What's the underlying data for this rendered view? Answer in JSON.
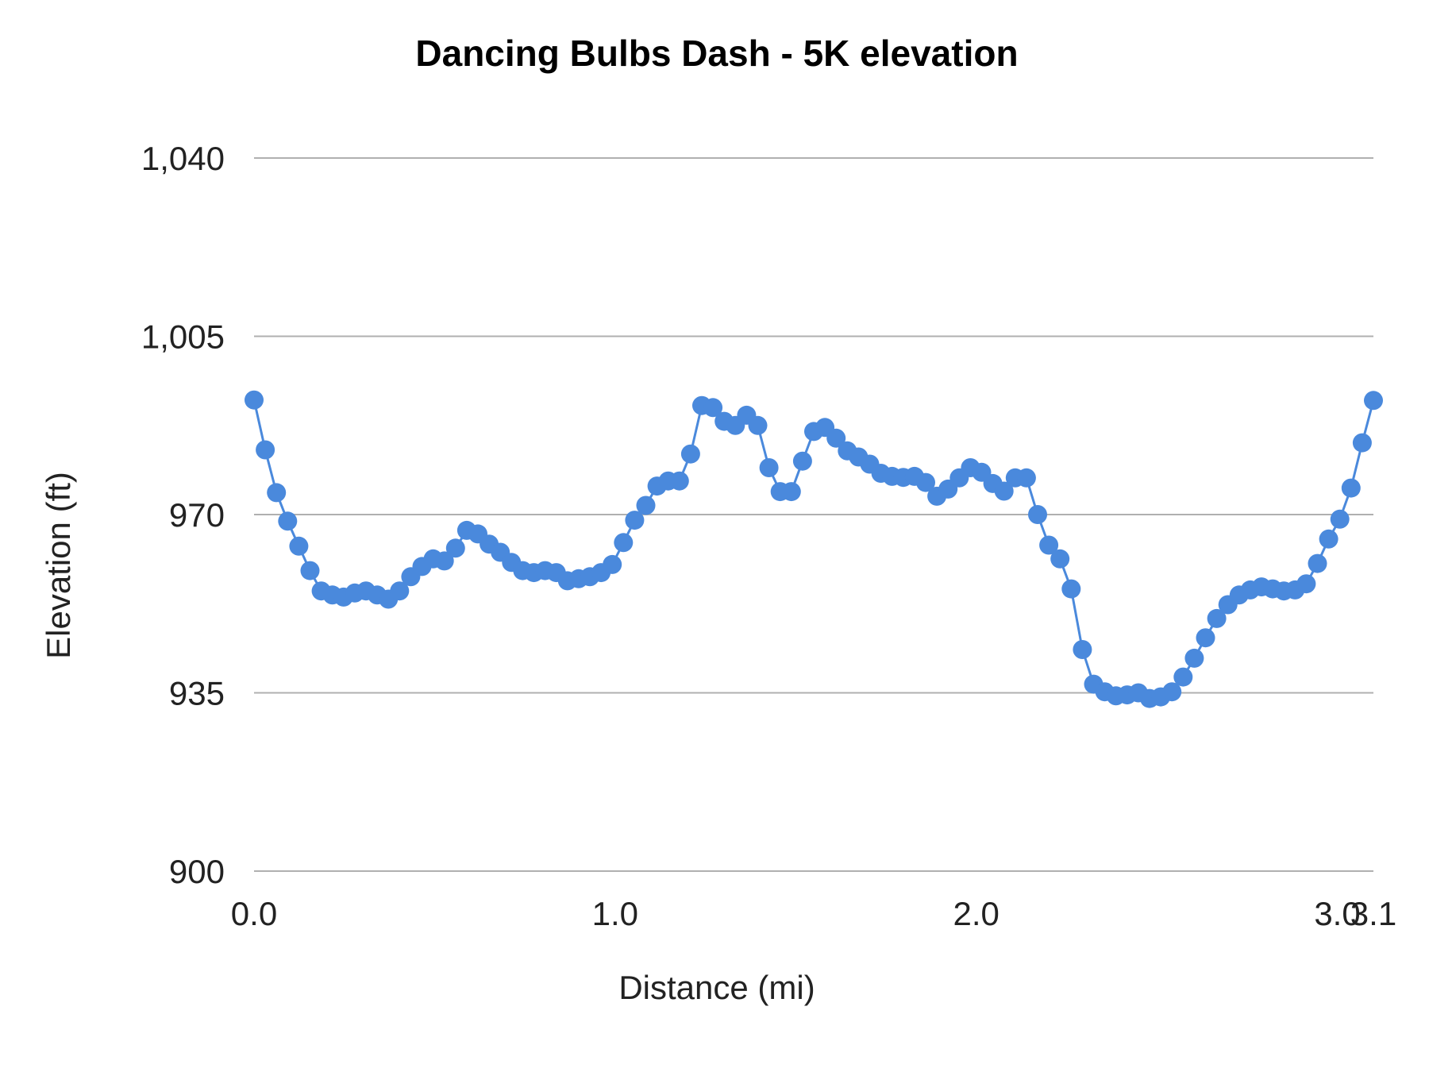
{
  "chart_data": {
    "type": "line",
    "title": "Dancing Bulbs Dash - 5K elevation",
    "xlabel": "Distance (mi)",
    "ylabel": "Elevation (ft)",
    "xlim": [
      0,
      3.1
    ],
    "ylim": [
      900,
      1040
    ],
    "x_ticks": [
      "0.0",
      "1.0",
      "2.0",
      "3.0",
      "3.1"
    ],
    "y_ticks": [
      "1,040",
      "1,005",
      "970",
      "935",
      "900"
    ],
    "grid": true,
    "legend": "none",
    "color": "#4a89dc",
    "series": [
      {
        "x": [
          0.0,
          0.031,
          0.062,
          0.093,
          0.124,
          0.155,
          0.186,
          0.217,
          0.248,
          0.279,
          0.31,
          0.341,
          0.372,
          0.403,
          0.434,
          0.465,
          0.496,
          0.527,
          0.558,
          0.589,
          0.62,
          0.651,
          0.682,
          0.713,
          0.744,
          0.775,
          0.806,
          0.837,
          0.868,
          0.899,
          0.93,
          0.961,
          0.992,
          1.023,
          1.054,
          1.085,
          1.116,
          1.147,
          1.178,
          1.209,
          1.24,
          1.271,
          1.302,
          1.333,
          1.364,
          1.395,
          1.426,
          1.457,
          1.488,
          1.519,
          1.55,
          1.581,
          1.612,
          1.643,
          1.674,
          1.705,
          1.736,
          1.767,
          1.798,
          1.829,
          1.86,
          1.891,
          1.922,
          1.953,
          1.984,
          2.015,
          2.046,
          2.077,
          2.108,
          2.139,
          2.17,
          2.201,
          2.232,
          2.263,
          2.294,
          2.325,
          2.356,
          2.387,
          2.418,
          2.449,
          2.48,
          2.511,
          2.542,
          2.573,
          2.604,
          2.635,
          2.666,
          2.697,
          2.728,
          2.759,
          2.79,
          2.821,
          2.852,
          2.883,
          2.914,
          2.945,
          2.976,
          3.007,
          3.038,
          3.069,
          3.1
        ],
        "y": [
          992.5,
          982.7,
          974.3,
          968.7,
          963.8,
          959.0,
          955.0,
          954.2,
          953.8,
          954.6,
          955.0,
          954.2,
          953.4,
          955.0,
          957.8,
          959.8,
          961.3,
          960.9,
          963.4,
          966.9,
          966.2,
          964.2,
          962.6,
          960.6,
          959.0,
          958.6,
          959.0,
          958.6,
          957.0,
          957.4,
          957.8,
          958.6,
          960.2,
          964.5,
          968.9,
          971.8,
          975.6,
          976.6,
          976.6,
          981.9,
          991.4,
          991.0,
          988.3,
          987.5,
          989.5,
          987.5,
          979.2,
          974.5,
          974.5,
          980.5,
          986.3,
          987.1,
          985.0,
          982.5,
          981.3,
          979.9,
          978.1,
          977.5,
          977.3,
          977.5,
          976.3,
          973.6,
          975.0,
          977.2,
          979.2,
          978.3,
          976.1,
          974.6,
          977.2,
          977.2,
          970.0,
          964.0,
          961.3,
          955.4,
          943.5,
          936.7,
          935.2,
          934.4,
          934.6,
          935.0,
          933.9,
          934.2,
          935.2,
          938.1,
          941.8,
          945.8,
          949.6,
          952.3,
          954.2,
          955.2,
          955.8,
          955.4,
          955.0,
          955.2,
          956.4,
          960.4,
          965.2,
          969.1,
          975.2,
          984.1,
          992.4
        ]
      }
    ]
  }
}
